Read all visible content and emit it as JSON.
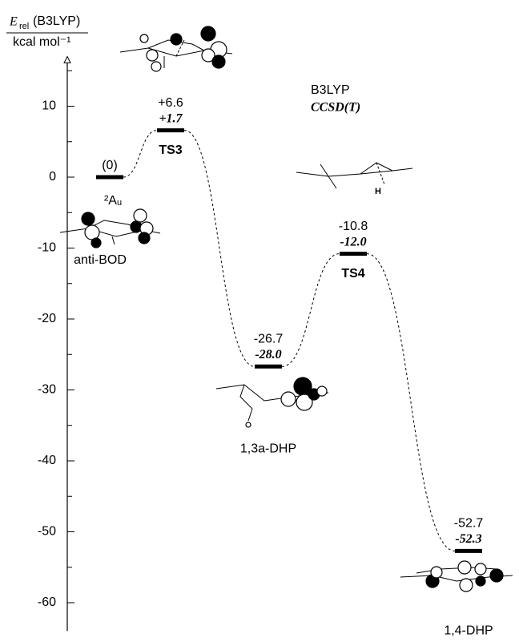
{
  "chart_data": {
    "type": "energy-diagram",
    "ylabel": {
      "symbol": "E",
      "subscript": "rel",
      "method": "(B3LYP)",
      "unit": "kcal mol⁻¹"
    },
    "categories": [
      "anti-BOD",
      "TS3",
      "1,3a-DHP",
      "TS4",
      "1,4-DHP"
    ],
    "state_label": "²Aᵤ",
    "series": [
      {
        "name": "B3LYP",
        "color": "#000000",
        "values": [
          0,
          6.6,
          -26.7,
          -10.8,
          -52.7
        ],
        "value_labels": [
          "(0)",
          "+6.6",
          "-26.7",
          "-10.8",
          "-52.7"
        ]
      },
      {
        "name": "CCSD(T)",
        "color": "#000000",
        "values": [
          null,
          1.7,
          -28.0,
          -12.0,
          -52.3
        ],
        "value_labels": [
          null,
          "+1.7",
          "-28.0",
          "-12.0",
          "-52.3"
        ]
      }
    ],
    "ylim": [
      -64,
      17
    ],
    "yticks": [
      -60,
      -50,
      -40,
      -30,
      -20,
      -10,
      0,
      10
    ],
    "yminorticks": [
      -55,
      -45,
      -35,
      -25,
      -15,
      -5,
      5,
      15
    ]
  }
}
